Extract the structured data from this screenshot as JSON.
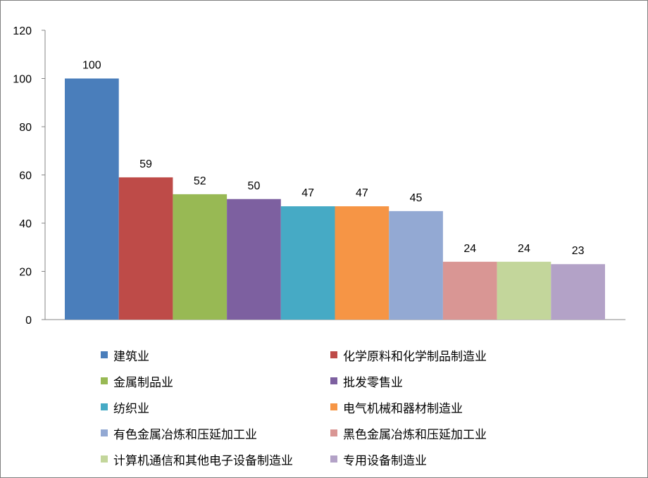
{
  "chart_data": {
    "type": "bar",
    "title": "",
    "xlabel": "",
    "ylabel": "",
    "ylim": [
      0,
      120
    ],
    "yticks": [
      0,
      20,
      40,
      60,
      80,
      100,
      120
    ],
    "grid": false,
    "legend_position": "bottom",
    "categories": [
      "建筑业",
      "化学原料和化学制品制造业",
      "金属制品业",
      "批发零售业",
      "纺织业",
      "电气机械和器材制造业",
      "有色金属冶炼和压延加工业",
      "黑色金属冶炼和压延加工业",
      "计算机通信和其他电子设备制造业",
      "专用设备制造业"
    ],
    "values": [
      100,
      59,
      52,
      50,
      47,
      47,
      45,
      24,
      24,
      23
    ],
    "colors": [
      "#4a7ebb",
      "#be4b48",
      "#98b954",
      "#7d60a0",
      "#46aac5",
      "#f69545",
      "#93a9d3",
      "#d99694",
      "#c3d69b",
      "#b3a2c7"
    ]
  }
}
